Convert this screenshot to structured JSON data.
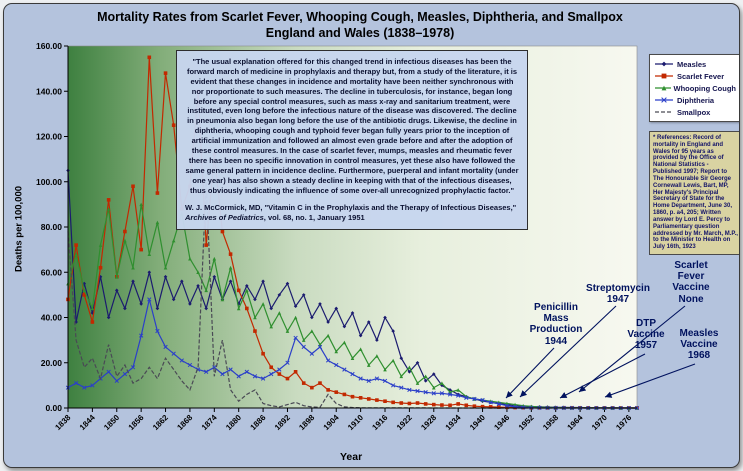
{
  "title": {
    "line1": "Mortality Rates from Scarlet Fever, Whooping Cough, Measles, Diphtheria, and Smallpox",
    "line2": "England and Wales (1838–1978)"
  },
  "quote_box": {
    "body": "\"The usual explanation offered for this changed trend in infectious diseases has been the forward march of medicine in prophylaxis and therapy but, from a study of the literature, it is evident that these changes in incidence and mortality have been neither synchronous with nor proportionate to such measures. The decline in tuberculosis, for instance, began long before any special control measures, such as mass x-ray and sanitarium treatment, were instituted, even long before the infectious nature of the disease was discovered. The decline in pneumonia also began long before the use of the antibiotic drugs. Likewise, the decline in diphtheria, whooping cough and typhoid fever began fully years prior to the inception of artificial immunization and followed an almost even grade before and after the adoption of these control measures. In the case of scarlet fever, mumps, measles and rheumatic fever there has been no specific innovation in control measures, yet these also have followed the same general pattern in incidence decline. Furthermore, puerperal and infant mortality (under one year) has also shown a steady decline in keeping with that of the infectious diseases, thus obviously indicating the influence of some over-all unrecognized prophylactic factor.\"",
    "attribution_pre": "W. J. McCormick, MD, \"Vitamin C in the Prophylaxis and the Therapy of Infectious Diseases,\" ",
    "attribution_italic": "Archives of Pediatrics",
    "attribution_post": ", vol. 68, no. 1, January 1951"
  },
  "references_box": {
    "text": "* References: Record of mortality in England and Wales for 95 years as provided by the Office of National Statistics - Published 1997; Report to The Honourable Sir George Cornewall Lewis, Bart, MP, Her Majesty's Principal Secretary of State for the Home Department, June 30, 1860, p. a4, 205; Written answer by Lord E. Percy to Parliamentary question addressed by Mr. March, M.P., to the Minister to Health on July 16th, 1923"
  },
  "axes": {
    "y_label": "Deaths per 100,000",
    "x_label": "Year",
    "y_ticks": [
      "160.00",
      "140.00",
      "120.00",
      "100.00",
      "80.00",
      "60.00",
      "40.00",
      "20.00",
      "0.00"
    ],
    "x_ticks": [
      1838,
      1844,
      1850,
      1856,
      1862,
      1868,
      1874,
      1880,
      1886,
      1892,
      1898,
      1904,
      1910,
      1916,
      1922,
      1928,
      1934,
      1940,
      1946,
      1952,
      1958,
      1964,
      1970,
      1976
    ]
  },
  "annotations": [
    {
      "id": "penicillin",
      "text": "Penicillin\nMass\nProduction\n1944"
    },
    {
      "id": "streptomycin",
      "text": "Streptomycin\n1947"
    },
    {
      "id": "dtp",
      "text": "DTP\nVaccine\n1957"
    },
    {
      "id": "scarlet-fever-vaccine",
      "text": "Scarlet\nFever\nVaccine\nNone"
    },
    {
      "id": "measles-vaccine",
      "text": "Measles\nVaccine\n1968"
    }
  ],
  "chart_data": {
    "type": "line",
    "title": "Mortality Rates from Scarlet Fever, Whooping Cough, Measles, Diphtheria, and Smallpox — England and Wales (1838–1978)",
    "xlabel": "Year",
    "ylabel": "Deaths per 100,000",
    "xlim": [
      1838,
      1978
    ],
    "ylim": [
      0,
      160
    ],
    "grid": false,
    "legend_position": "top-right",
    "x_start": 1838,
    "x_step": 2,
    "series": [
      {
        "name": "Measles",
        "color": "#1b1b6f",
        "marker": "diamond",
        "dash": null,
        "values": [
          105,
          38,
          55,
          42,
          58,
          40,
          52,
          44,
          56,
          46,
          60,
          44,
          58,
          48,
          56,
          46,
          54,
          44,
          58,
          48,
          56,
          46,
          54,
          48,
          56,
          44,
          50,
          55,
          45,
          50,
          40,
          46,
          38,
          44,
          36,
          42,
          32,
          38,
          30,
          40,
          34,
          22,
          16,
          20,
          12,
          15,
          10,
          8,
          6,
          5,
          4,
          3,
          2.5,
          2,
          1.5,
          1,
          0.8,
          0.6,
          0.5,
          0.4,
          0.3,
          0.3,
          0.2,
          0.2,
          0.15,
          0.1,
          0.1,
          0.05,
          0.05,
          0.03,
          0.02
        ]
      },
      {
        "name": "Scarlet Fever",
        "color": "#c22900",
        "marker": "square",
        "dash": null,
        "values": [
          48,
          72,
          50,
          38,
          62,
          92,
          58,
          78,
          98,
          70,
          155,
          95,
          148,
          125,
          88,
          98,
          140,
          72,
          112,
          78,
          68,
          52,
          44,
          34,
          24,
          18,
          15,
          13,
          16,
          11,
          9,
          11,
          8,
          7,
          6,
          5,
          4.5,
          4,
          3.5,
          3,
          2.5,
          2.2,
          2,
          2.2,
          1.8,
          1.5,
          1.3,
          1.2,
          1.8,
          1.2,
          0.8,
          0.6,
          0.5,
          0.4,
          0.3,
          0.2,
          0.15,
          0.1,
          0.1,
          0.08,
          0.06,
          0.05,
          0.05,
          0.04,
          0.03,
          0.03,
          0.02,
          0.02,
          0.01,
          0.01,
          0.01
        ]
      },
      {
        "name": "Whooping Cough",
        "color": "#2f8f2f",
        "marker": "triangle",
        "dash": null,
        "values": [
          55,
          68,
          52,
          44,
          72,
          88,
          58,
          74,
          62,
          90,
          68,
          82,
          62,
          74,
          86,
          66,
          60,
          52,
          66,
          48,
          62,
          44,
          52,
          40,
          46,
          36,
          42,
          34,
          40,
          30,
          34,
          28,
          32,
          25,
          29,
          22,
          26,
          19,
          23,
          17,
          21,
          14,
          18,
          11,
          14,
          9,
          11,
          7,
          8,
          5,
          4,
          3.5,
          3,
          2.5,
          2,
          1.5,
          1,
          0.7,
          0.4,
          0.3,
          0.2,
          0.15,
          0.1,
          0.08,
          0.06,
          0.05,
          0.04,
          0.03,
          0.02,
          0.02,
          0.01
        ]
      },
      {
        "name": "Diphtheria",
        "color": "#2b3fc9",
        "marker": "x",
        "dash": null,
        "values": [
          9,
          11,
          9,
          10,
          13,
          16,
          12,
          15,
          18,
          32,
          48,
          34,
          27,
          24,
          21,
          19,
          17,
          16,
          18,
          15,
          17,
          14,
          16,
          14,
          13,
          15,
          17,
          20,
          31,
          27,
          24,
          27,
          21,
          19,
          17,
          15,
          13,
          12,
          13,
          12,
          10,
          9,
          8,
          7.5,
          7,
          6.5,
          6.5,
          6,
          5.5,
          4.5,
          4,
          3.5,
          2.5,
          1.8,
          1,
          0.5,
          0.25,
          0.12,
          0.08,
          0.05,
          0.03,
          0.02,
          0.02,
          0.01,
          0.01,
          0.01,
          0.01,
          0.01,
          0.01,
          0.01,
          0.01
        ]
      },
      {
        "name": "Smallpox",
        "color": "#4a4a55",
        "marker": "none",
        "dash": "4 2",
        "values": [
          78,
          30,
          18,
          22,
          13,
          28,
          14,
          19,
          11,
          13,
          18,
          13,
          22,
          17,
          12,
          8,
          18,
          100,
          14,
          30,
          8,
          3,
          6,
          8,
          2,
          1,
          0.5,
          1.5,
          2.5,
          1,
          0.5,
          0.3,
          6,
          2,
          0.5,
          0.2,
          0.1,
          0.05,
          0.05,
          0.05,
          0.05,
          0.05,
          0.05,
          0.05,
          0.05,
          0.02,
          0.02,
          0.02,
          0.02,
          0.02,
          0.02,
          0.02,
          0.02,
          0.02,
          0.01,
          0.01,
          0.01,
          0.01,
          0.01,
          0.01,
          0.01,
          0.01,
          0.01,
          0.01,
          0.01,
          0.01,
          0.01,
          0.01,
          0.01,
          0.01,
          0.01
        ]
      }
    ]
  }
}
